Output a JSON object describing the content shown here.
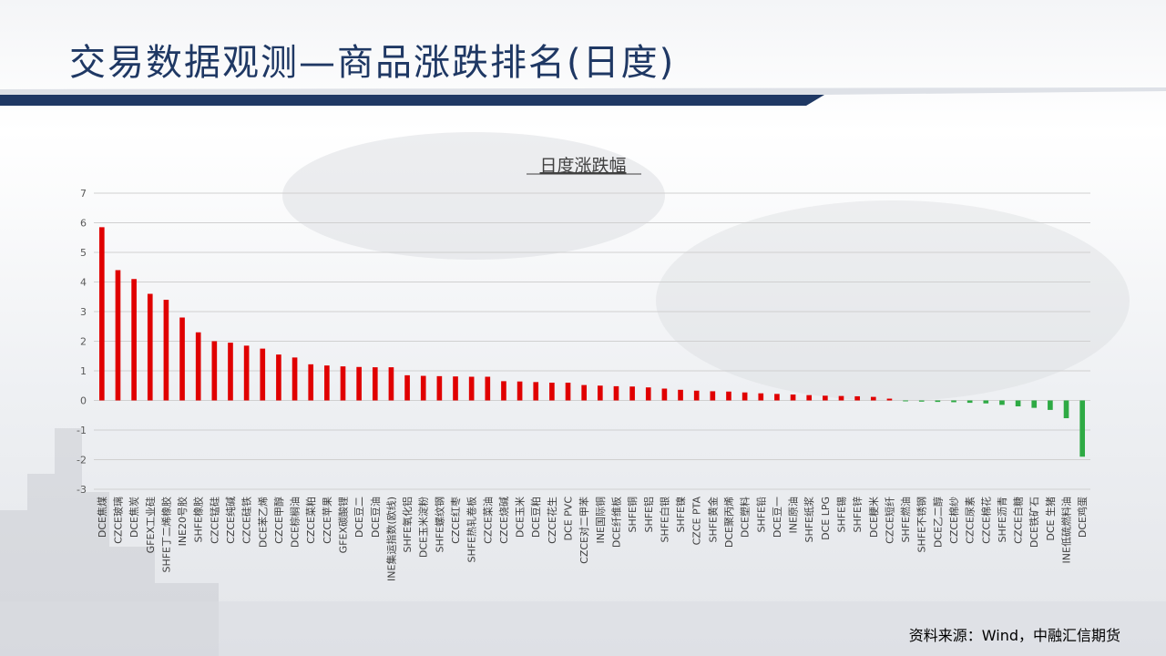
{
  "page": {
    "title": "交易数据观测—商品涨跌排名(日度)",
    "source": "资料来源：Wind，中融汇信期货"
  },
  "colors": {
    "title": "#1f3864",
    "header_band": "#1f3864",
    "up": "#e00000",
    "down": "#2eaa44"
  },
  "chart_data": {
    "type": "bar",
    "title": "日度涨跌幅",
    "xlabel": "",
    "ylabel": "",
    "ylim": [
      -3,
      7
    ],
    "yticks": [
      7,
      6,
      5,
      4,
      3,
      2,
      1,
      0,
      -1,
      -2,
      -3
    ],
    "grid": true,
    "categories": [
      "DCE焦煤",
      "CZCE玻璃",
      "DCE焦炭",
      "GFEX工业硅",
      "SHFE丁二烯橡胶",
      "INE20号胶",
      "SHFE橡胶",
      "CZCE锰硅",
      "CZCE纯碱",
      "CZCE硅铁",
      "DCE苯乙烯",
      "CZCE甲醇",
      "DCE棕榈油",
      "CZCE菜粕",
      "CZCE苹果",
      "GFEX碳酸锂",
      "DCE豆二",
      "DCE豆油",
      "INE集运指数(欧线)",
      "SHFE氧化铝",
      "DCE玉米淀粉",
      "SHFE螺纹钢",
      "CZCE红枣",
      "SHFE热轧卷板",
      "CZCE菜油",
      "CZCE烧碱",
      "DCE玉米",
      "DCE豆粕",
      "CZCE花生",
      "DCE PVC",
      "CZCE对二甲苯",
      "INE国际铜",
      "DCE纤维板",
      "SHFE铜",
      "SHFE铝",
      "SHFE白银",
      "SHFE镍",
      "CZCE PTA",
      "SHFE黄金",
      "DCE聚丙烯",
      "DCE塑料",
      "SHFE铅",
      "DCE豆一",
      "INE原油",
      "SHFE纸浆",
      "DCE LPG",
      "SHFE锡",
      "SHFE锌",
      "DCE粳米",
      "CZCE短纤",
      "SHFE燃油",
      "SHFE不锈钢",
      "DCE乙二醇",
      "CZCE棉纱",
      "CZCE尿素",
      "CZCE棉花",
      "SHFE沥青",
      "CZCE白糖",
      "DCE铁矿石",
      "DCE 生猪",
      "INE低硫燃料油",
      "DCE鸡蛋"
    ],
    "values": [
      5.85,
      4.4,
      4.1,
      3.6,
      3.4,
      2.8,
      2.3,
      2.0,
      1.95,
      1.85,
      1.75,
      1.55,
      1.45,
      1.22,
      1.18,
      1.15,
      1.13,
      1.12,
      1.12,
      0.85,
      0.83,
      0.82,
      0.81,
      0.8,
      0.8,
      0.65,
      0.64,
      0.62,
      0.6,
      0.6,
      0.52,
      0.5,
      0.48,
      0.47,
      0.44,
      0.4,
      0.36,
      0.33,
      0.31,
      0.3,
      0.27,
      0.24,
      0.22,
      0.2,
      0.18,
      0.16,
      0.15,
      0.14,
      0.12,
      0.06,
      -0.03,
      -0.04,
      -0.05,
      -0.06,
      -0.08,
      -0.1,
      -0.15,
      -0.2,
      -0.25,
      -0.32,
      -0.6,
      -1.9
    ]
  }
}
